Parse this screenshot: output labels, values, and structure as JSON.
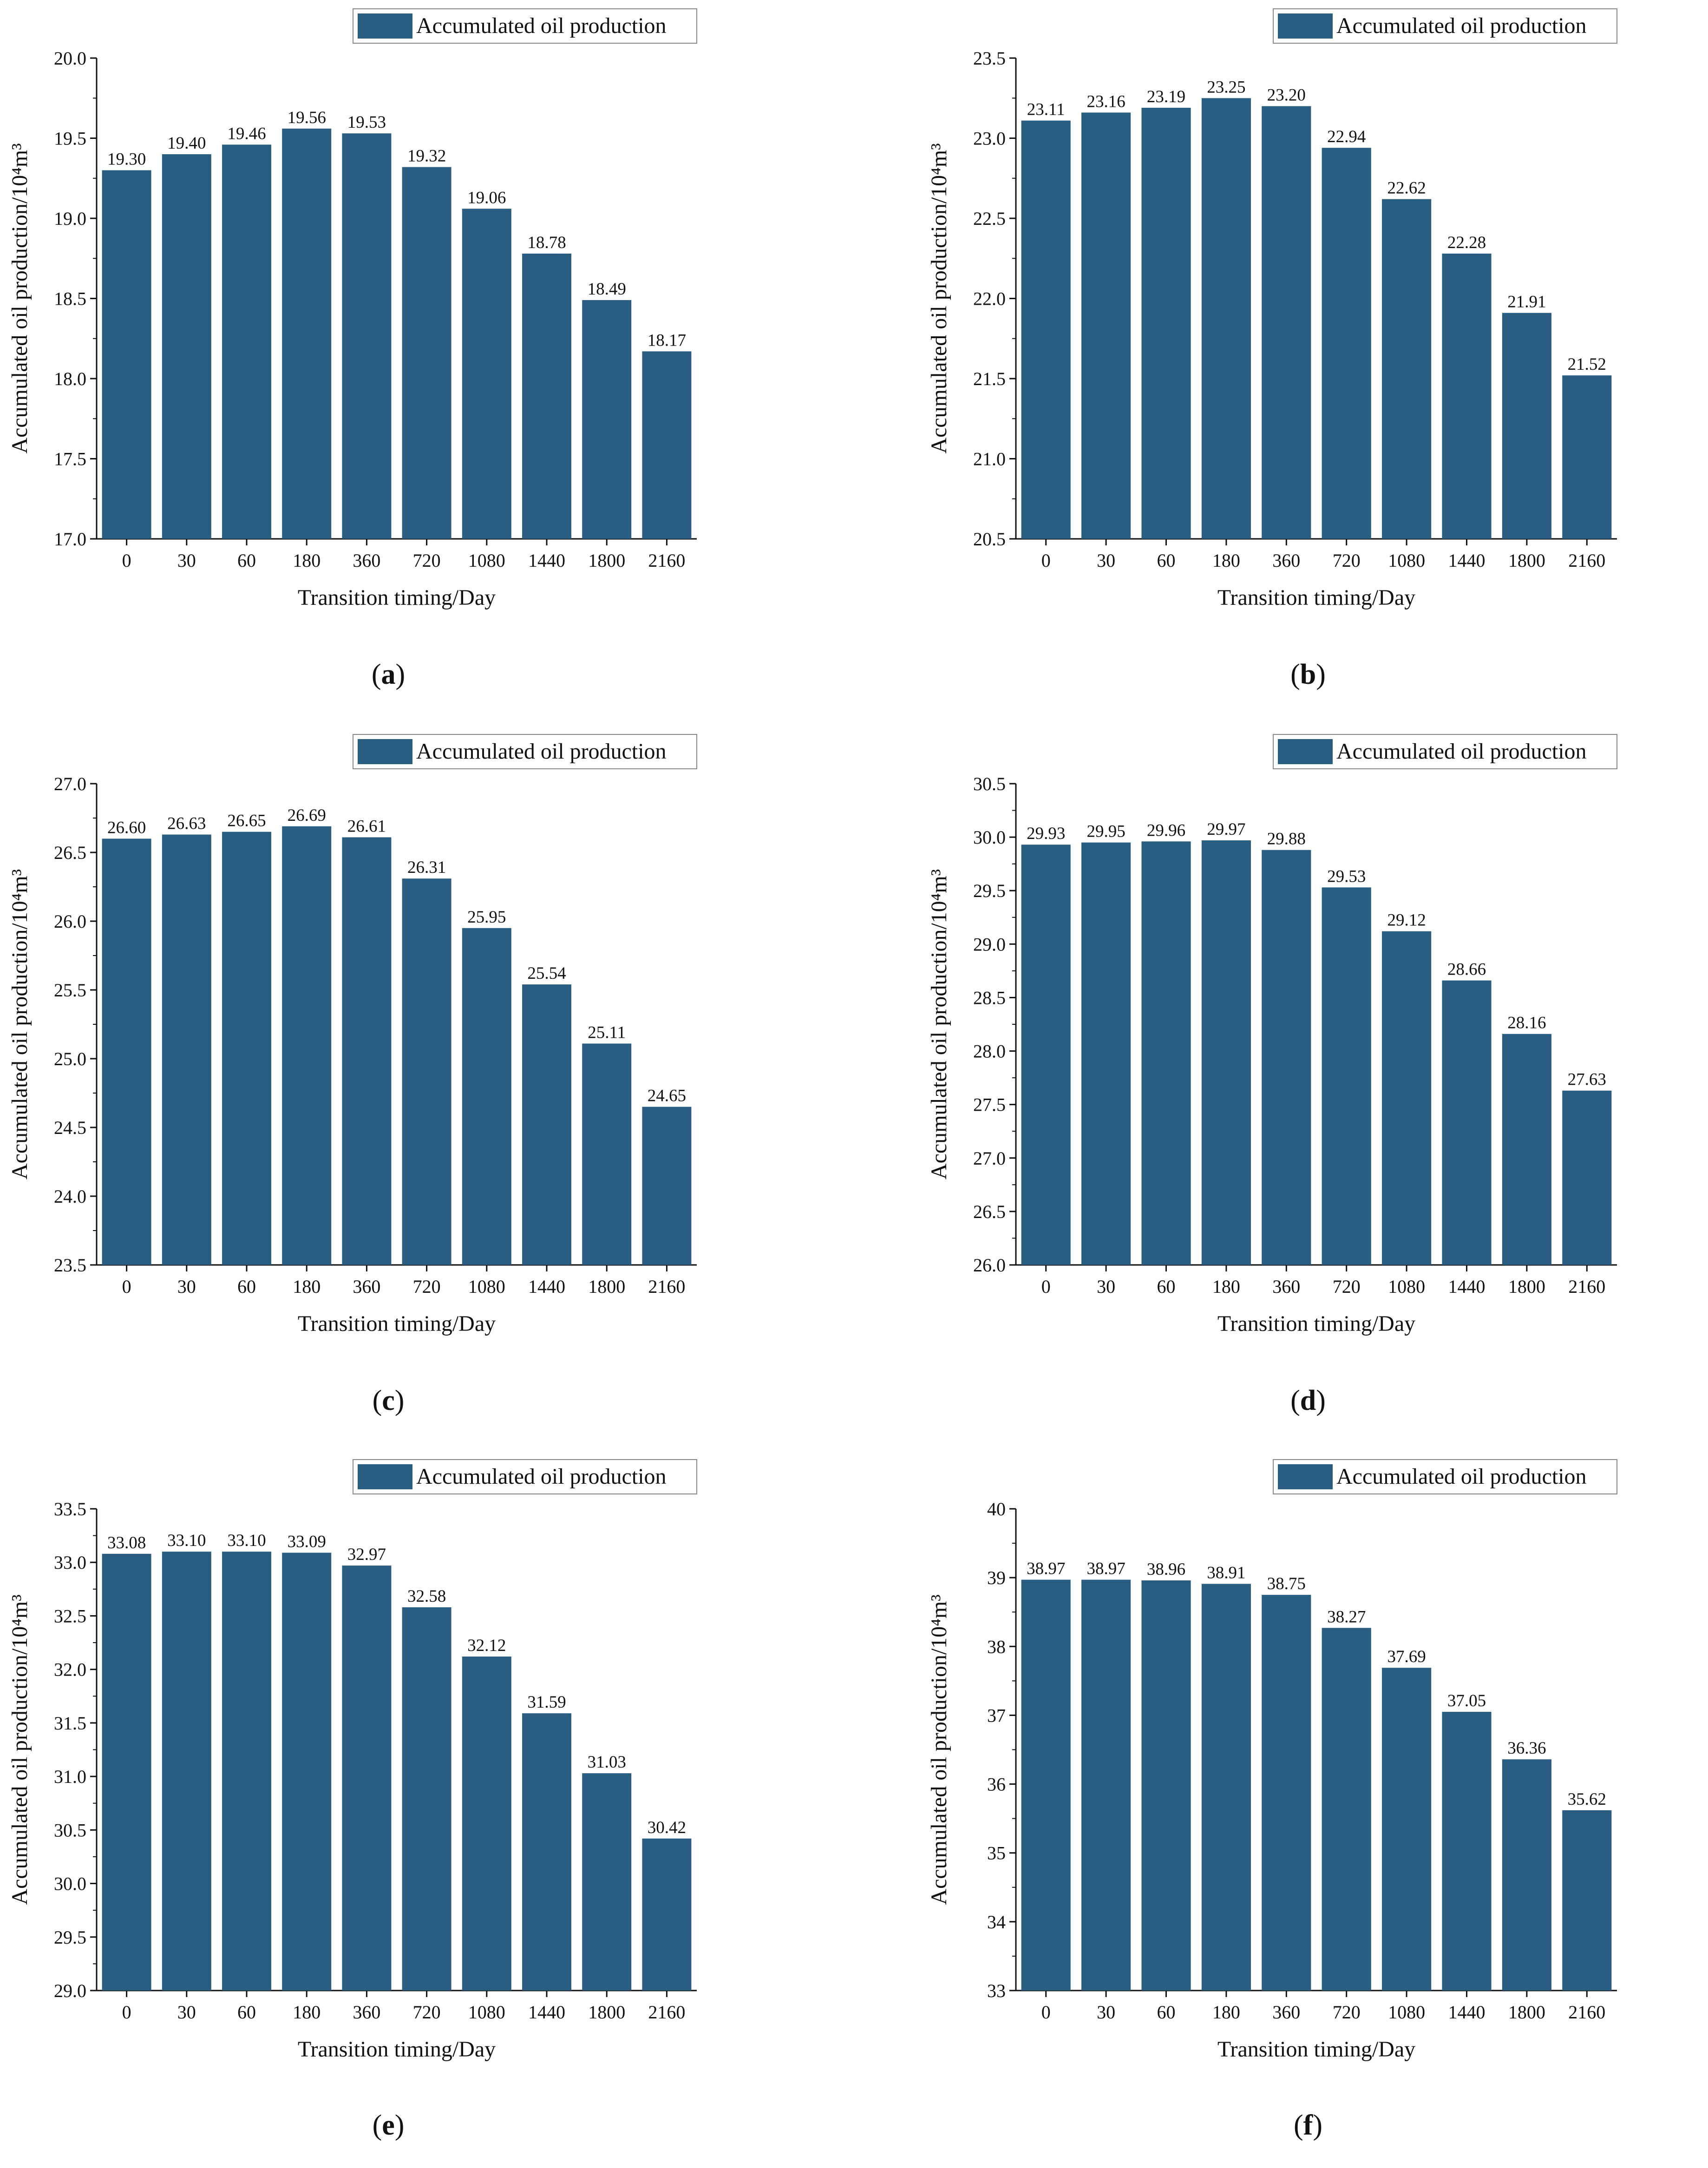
{
  "chart_data": [
    {
      "type": "bar",
      "panel_label": "a",
      "categories": [
        "0",
        "30",
        "60",
        "180",
        "360",
        "720",
        "1080",
        "1440",
        "1800",
        "2160"
      ],
      "series": [
        {
          "name": "Accumulated oil production",
          "values": [
            19.3,
            19.4,
            19.46,
            19.56,
            19.53,
            19.32,
            19.06,
            18.78,
            18.49,
            18.17
          ]
        }
      ],
      "data_labels": [
        "19.30",
        "19.40",
        "19.46",
        "19.56",
        "19.53",
        "19.32",
        "19.06",
        "18.78",
        "18.49",
        "18.17"
      ],
      "xlabel": "Transition timing/Day",
      "ylabel": "Accumulated oil production/10⁴m³",
      "ylim": [
        17.0,
        20.0
      ],
      "yticks": [
        "17.0",
        "17.5",
        "18.0",
        "18.5",
        "19.0",
        "19.5",
        "20.0"
      ],
      "legend_position": "top-right",
      "color": "#2a5d82",
      "grid": false
    },
    {
      "type": "bar",
      "panel_label": "b",
      "categories": [
        "0",
        "30",
        "60",
        "180",
        "360",
        "720",
        "1080",
        "1440",
        "1800",
        "2160"
      ],
      "series": [
        {
          "name": "Accumulated oil production",
          "values": [
            23.11,
            23.16,
            23.19,
            23.25,
            23.2,
            22.94,
            22.62,
            22.28,
            21.91,
            21.52
          ]
        }
      ],
      "data_labels": [
        "23.11",
        "23.16",
        "23.19",
        "23.25",
        "23.20",
        "22.94",
        "22.62",
        "22.28",
        "21.91",
        "21.52"
      ],
      "xlabel": "Transition timing/Day",
      "ylabel": "Accumulated oil production/10⁴m³",
      "ylim": [
        20.5,
        23.5
      ],
      "yticks": [
        "20.5",
        "21.0",
        "21.5",
        "22.0",
        "22.5",
        "23.0",
        "23.5"
      ],
      "legend_position": "top-right",
      "color": "#2a5d82",
      "grid": false
    },
    {
      "type": "bar",
      "panel_label": "c",
      "categories": [
        "0",
        "30",
        "60",
        "180",
        "360",
        "720",
        "1080",
        "1440",
        "1800",
        "2160"
      ],
      "series": [
        {
          "name": "Accumulated oil production",
          "values": [
            26.6,
            26.63,
            26.65,
            26.69,
            26.61,
            26.31,
            25.95,
            25.54,
            25.11,
            24.65
          ]
        }
      ],
      "data_labels": [
        "26.60",
        "26.63",
        "26.65",
        "26.69",
        "26.61",
        "26.31",
        "25.95",
        "25.54",
        "25.11",
        "24.65"
      ],
      "xlabel": "Transition timing/Day",
      "ylabel": "Accumulated oil production/10⁴m³",
      "ylim": [
        23.5,
        27.0
      ],
      "yticks": [
        "23.5",
        "24.0",
        "24.5",
        "25.0",
        "25.5",
        "26.0",
        "26.5",
        "27.0"
      ],
      "legend_position": "top-right",
      "color": "#2a5d82",
      "grid": false
    },
    {
      "type": "bar",
      "panel_label": "d",
      "categories": [
        "0",
        "30",
        "60",
        "180",
        "360",
        "720",
        "1080",
        "1440",
        "1800",
        "2160"
      ],
      "series": [
        {
          "name": "Accumulated oil production",
          "values": [
            29.93,
            29.95,
            29.96,
            29.97,
            29.88,
            29.53,
            29.12,
            28.66,
            28.16,
            27.63
          ]
        }
      ],
      "data_labels": [
        "29.93",
        "29.95",
        "29.96",
        "29.97",
        "29.88",
        "29.53",
        "29.12",
        "28.66",
        "28.16",
        "27.63"
      ],
      "xlabel": "Transition timing/Day",
      "ylabel": "Accumulated oil production/10⁴m³",
      "ylim": [
        26.0,
        30.5
      ],
      "yticks": [
        "26.0",
        "26.5",
        "27.0",
        "27.5",
        "28.0",
        "28.5",
        "29.0",
        "29.5",
        "30.0",
        "30.5"
      ],
      "legend_position": "top-right",
      "color": "#2a5d82",
      "grid": false
    },
    {
      "type": "bar",
      "panel_label": "e",
      "categories": [
        "0",
        "30",
        "60",
        "180",
        "360",
        "720",
        "1080",
        "1440",
        "1800",
        "2160"
      ],
      "series": [
        {
          "name": "Accumulated oil production",
          "values": [
            33.08,
            33.1,
            33.1,
            33.09,
            32.97,
            32.58,
            32.12,
            31.59,
            31.03,
            30.42
          ]
        }
      ],
      "data_labels": [
        "33.08",
        "33.10",
        "33.10",
        "33.09",
        "32.97",
        "32.58",
        "32.12",
        "31.59",
        "31.03",
        "30.42"
      ],
      "xlabel": "Transition timing/Day",
      "ylabel": "Accumulated oil production/10⁴m³",
      "ylim": [
        29.0,
        33.5
      ],
      "yticks": [
        "29.0",
        "29.5",
        "30.0",
        "30.5",
        "31.0",
        "31.5",
        "32.0",
        "32.5",
        "33.0",
        "33.5"
      ],
      "legend_position": "top-right",
      "color": "#2a5d82",
      "grid": false
    },
    {
      "type": "bar",
      "panel_label": "f",
      "categories": [
        "0",
        "30",
        "60",
        "180",
        "360",
        "720",
        "1080",
        "1440",
        "1800",
        "2160"
      ],
      "series": [
        {
          "name": "Accumulated oil production",
          "values": [
            38.97,
            38.97,
            38.96,
            38.91,
            38.75,
            38.27,
            37.69,
            37.05,
            36.36,
            35.62
          ]
        }
      ],
      "data_labels": [
        "38.97",
        "38.97",
        "38.96",
        "38.91",
        "38.75",
        "38.27",
        "37.69",
        "37.05",
        "36.36",
        "35.62"
      ],
      "xlabel": "Transition timing/Day",
      "ylabel": "Accumulated oil production/10⁴m³",
      "ylim": [
        33,
        40
      ],
      "yticks": [
        "33",
        "34",
        "35",
        "36",
        "37",
        "38",
        "39",
        "40"
      ],
      "legend_position": "top-right",
      "color": "#2a5d82",
      "grid": false
    }
  ]
}
